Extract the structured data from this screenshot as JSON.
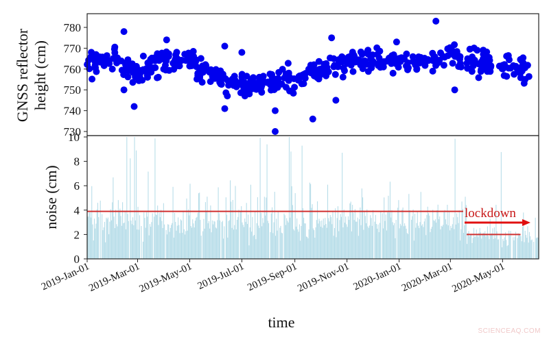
{
  "chart_data": [
    {
      "type": "scatter",
      "title": "",
      "ylabel": "GNSS reflector height (cm)",
      "ylabel_lines": [
        "GNSS reflector",
        "height (cm)"
      ],
      "xlabel": "",
      "ylim": [
        728,
        786
      ],
      "yticks": [
        730,
        740,
        750,
        760,
        770,
        780
      ],
      "marker_color": "#0000ee",
      "x_start": "2019-01-01",
      "x_end": "2020-05-27",
      "trend_anchors": [
        {
          "day": 0,
          "value": 763
        },
        {
          "day": 30,
          "value": 765
        },
        {
          "day": 60,
          "value": 757
        },
        {
          "day": 90,
          "value": 764
        },
        {
          "day": 120,
          "value": 764
        },
        {
          "day": 150,
          "value": 757
        },
        {
          "day": 180,
          "value": 752
        },
        {
          "day": 210,
          "value": 753
        },
        {
          "day": 240,
          "value": 755
        },
        {
          "day": 270,
          "value": 759
        },
        {
          "day": 300,
          "value": 763
        },
        {
          "day": 330,
          "value": 765
        },
        {
          "day": 360,
          "value": 764
        },
        {
          "day": 390,
          "value": 763
        },
        {
          "day": 420,
          "value": 766
        },
        {
          "day": 450,
          "value": 765
        },
        {
          "day": 480,
          "value": 762
        },
        {
          "day": 512,
          "value": 760
        }
      ],
      "outliers": [
        {
          "date": "2019-02-13",
          "value": 778
        },
        {
          "date": "2019-02-13",
          "value": 750
        },
        {
          "date": "2019-02-25",
          "value": 742
        },
        {
          "date": "2019-04-04",
          "value": 774
        },
        {
          "date": "2019-06-11",
          "value": 771
        },
        {
          "date": "2019-06-11",
          "value": 741
        },
        {
          "date": "2019-07-01",
          "value": 768
        },
        {
          "date": "2019-08-09",
          "value": 730
        },
        {
          "date": "2019-08-09",
          "value": 740
        },
        {
          "date": "2019-09-22",
          "value": 736
        },
        {
          "date": "2019-10-14",
          "value": 775
        },
        {
          "date": "2019-10-19",
          "value": 745
        },
        {
          "date": "2019-12-29",
          "value": 773
        },
        {
          "date": "2020-02-13",
          "value": 783
        },
        {
          "date": "2020-03-06",
          "value": 750
        }
      ],
      "n_points": 505,
      "spread_cm": 4
    },
    {
      "type": "bar",
      "title": "",
      "ylabel": "noise (cm)",
      "xlabel": "time",
      "ylim": [
        0,
        10
      ],
      "yticks": [
        0,
        2,
        4,
        6,
        8,
        10
      ],
      "bar_color": "#add8e6",
      "x_tick_labels": [
        "2019-Jan-01",
        "2019-Mar-01",
        "2019-May-01",
        "2019-Jul-01",
        "2019-Sep-01",
        "2019-Nov-01",
        "2020-Jan-01",
        "2020-Mar-01",
        "2020-May-01"
      ],
      "x_tick_days": [
        0,
        59,
        120,
        181,
        243,
        304,
        365,
        425,
        486
      ],
      "baseline_before": {
        "value": 3.9,
        "from": "2019-01-01",
        "to": "2020-03-16",
        "color": "#d03030"
      },
      "baseline_lockdown": {
        "value": 2.0,
        "from": "2020-03-20",
        "to": "2020-05-22",
        "color": "#d03030"
      },
      "annotation": {
        "text": "lockdown",
        "arrow_from": "2020-03-20",
        "arrow_to": "2020-05-27",
        "color": "#e01010"
      },
      "typical_noise_before": 3.0,
      "typical_noise_after": 1.9,
      "spike_days": [
        46,
        50,
        55,
        57,
        64,
        79,
        202,
        210,
        236,
        238,
        251,
        298,
        430,
        484
      ]
    }
  ],
  "labels": {
    "top_ylabel_1": "GNSS reflector",
    "top_ylabel_2": "height (cm)",
    "bottom_ylabel": "noise (cm)",
    "xlabel": "time",
    "annotation": "lockdown",
    "watermark": "SCIENCEAQ.COM"
  }
}
